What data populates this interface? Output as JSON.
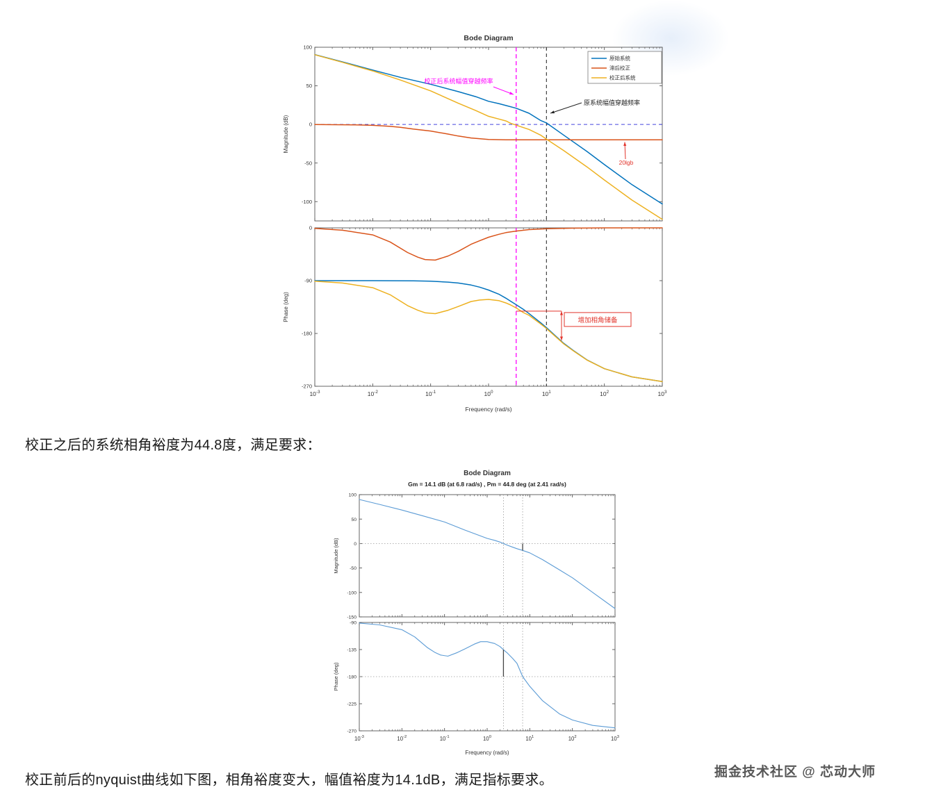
{
  "page": {
    "paragraph1": "校正之后的系统相角裕度为44.8度，满足要求：",
    "paragraph2": "校正前后的nyquist曲线如下图，相角裕度变大，幅值裕度为14.1dB，满足指标要求。",
    "watermark": "掘金技术社区 @ 芯动大师"
  },
  "colors": {
    "blue": "#0072BD",
    "orange": "#D95319",
    "yellow": "#EDB120",
    "lightblue": "#5B9BD5",
    "magenta": "#FF00FF",
    "red": "#E2342B",
    "zero_line": "#4444DD",
    "axis": "#555555"
  },
  "chart_data": [
    {
      "type": "line",
      "title": "Bode Diagram",
      "xlabel": "Frequency  (rad/s)",
      "xscale": "log",
      "xlim": [
        0.001,
        1000
      ],
      "legend": [
        "原始系统",
        "滞后校正",
        "校正后系统"
      ],
      "legend_position": "top-right",
      "subplots": [
        {
          "ylabel": "Magnitude (dB)",
          "ylim": [
            -125,
            100
          ],
          "yticks": [
            100,
            50,
            0,
            -50,
            -100
          ],
          "zero_db_refline": 0,
          "series": [
            {
              "name": "原始系统",
              "color": "blue",
              "x": [
                0.001,
                0.003,
                0.01,
                0.03,
                0.1,
                0.3,
                0.6,
                1,
                1.5,
                2,
                3,
                5,
                8,
                10,
                20,
                50,
                100,
                300,
                1000
              ],
              "y": [
                90.5,
                81,
                70.5,
                61,
                52,
                42.5,
                36,
                30,
                27,
                24.5,
                21,
                14.5,
                5,
                2,
                -14,
                -35,
                -52,
                -78,
                -103
              ]
            },
            {
              "name": "滞后校正",
              "color": "orange",
              "x": [
                0.001,
                0.005,
                0.01,
                0.02,
                0.03,
                0.05,
                0.1,
                0.2,
                0.3,
                0.5,
                1,
                2,
                3,
                5,
                10,
                100,
                1000
              ],
              "y": [
                -0.2,
                -0.6,
                -1.2,
                -2.5,
                -3.8,
                -6,
                -8.5,
                -12.5,
                -15,
                -17.5,
                -19.5,
                -20,
                -20,
                -20,
                -20,
                -20,
                -20
              ]
            },
            {
              "name": "校正后系统",
              "color": "yellow",
              "x": [
                0.001,
                0.003,
                0.01,
                0.03,
                0.1,
                0.3,
                0.6,
                1,
                1.5,
                2,
                2.41,
                3,
                5,
                8,
                10,
                20,
                50,
                100,
                300,
                1000
              ],
              "y": [
                90.3,
                80.5,
                69.3,
                57.5,
                43.5,
                27.5,
                18,
                10.5,
                7,
                4.5,
                1.5,
                -1,
                -6.5,
                -14,
                -19,
                -34,
                -55,
                -72,
                -98,
                -123
              ]
            }
          ]
        },
        {
          "ylabel": "Phase (deg)",
          "ylim": [
            -270,
            0
          ],
          "yticks": [
            0,
            -90,
            -180,
            -270
          ],
          "series": [
            {
              "name": "滞后校正",
              "color": "orange",
              "x": [
                0.001,
                0.003,
                0.01,
                0.02,
                0.04,
                0.06,
                0.08,
                0.12,
                0.2,
                0.3,
                0.5,
                0.7,
                1,
                1.5,
                2,
                3,
                5,
                10,
                30,
                100,
                1000
              ],
              "y": [
                -1,
                -4,
                -12,
                -24,
                -42,
                -50,
                -54,
                -55,
                -48,
                -40,
                -28,
                -22,
                -16,
                -11,
                -8,
                -5.5,
                -3,
                -1.5,
                -0.5,
                0,
                0
              ]
            },
            {
              "name": "原始系统",
              "color": "blue",
              "x": [
                0.001,
                0.01,
                0.05,
                0.1,
                0.2,
                0.3,
                0.5,
                0.7,
                1,
                1.5,
                2,
                2.41,
                3,
                4,
                5,
                8,
                10,
                15,
                20,
                30,
                50,
                100,
                300,
                1000
              ],
              "y": [
                -90,
                -90,
                -90.3,
                -91,
                -92.5,
                -94,
                -97.5,
                -101,
                -106,
                -113,
                -120,
                -125,
                -131,
                -139,
                -146,
                -162,
                -170,
                -186,
                -197,
                -210,
                -225,
                -240,
                -254,
                -262
              ]
            },
            {
              "name": "校正后系统",
              "color": "yellow",
              "x": [
                0.001,
                0.003,
                0.01,
                0.02,
                0.04,
                0.06,
                0.08,
                0.12,
                0.2,
                0.3,
                0.5,
                0.7,
                1,
                1.5,
                2,
                2.41,
                3,
                4,
                5,
                8,
                10,
                15,
                20,
                30,
                50,
                100,
                300,
                1000
              ],
              "y": [
                -91,
                -94,
                -102,
                -114,
                -132.5,
                -140.5,
                -144.7,
                -146.2,
                -140.5,
                -134,
                -125.5,
                -123,
                -122,
                -124,
                -128,
                -131.5,
                -136.5,
                -144.5,
                -149,
                -164,
                -171.5,
                -187,
                -198,
                -210.5,
                -225.3,
                -240,
                -254,
                -262
              ]
            }
          ]
        }
      ],
      "annotations": {
        "compensated_crossover_x": 3,
        "original_crossover_x": 10,
        "compensated_crossover_label": "校正后系统幅值穿越频率",
        "original_crossover_label": "原系统幅值穿越频率",
        "gain_annotation": "20lgb",
        "phase_margin_annotation": "增加相角储备"
      }
    },
    {
      "type": "line",
      "title": "Bode Diagram",
      "subtitle": "Gm = 14.1 dB (at 6.8 rad/s) ,  Pm = 44.8 deg (at 2.41 rad/s)",
      "xlabel": "Frequency  (rad/s)",
      "xscale": "log",
      "xlim": [
        0.001,
        1000
      ],
      "gain_margin_db": 14.1,
      "gain_margin_freq": 6.8,
      "phase_margin_deg": 44.8,
      "phase_margin_freq": 2.41,
      "dotted_vlines": [
        2.41,
        6.8
      ],
      "subplots": [
        {
          "ylabel": "Magnitude (dB)",
          "ylim": [
            -150,
            100
          ],
          "yticks": [
            100,
            50,
            0,
            -50,
            -100,
            -150
          ],
          "dotted_hline": 0,
          "marker": {
            "x": 6.8,
            "y_from": 0,
            "y_to": -14.1
          },
          "series": [
            {
              "name": "校正后系统",
              "color": "lightblue",
              "x": [
                0.001,
                0.003,
                0.01,
                0.03,
                0.1,
                0.3,
                1,
                1.5,
                2,
                2.41,
                3,
                4,
                5,
                6.8,
                10,
                20,
                50,
                100,
                300,
                1000
              ],
              "y": [
                90,
                80,
                68.5,
                57,
                44,
                27.5,
                10.5,
                6.5,
                3,
                0,
                -3.5,
                -7.5,
                -10.5,
                -14.1,
                -19,
                -33,
                -54,
                -70,
                -100,
                -133
              ]
            }
          ]
        },
        {
          "ylabel": "Phase (deg)",
          "ylim": [
            -270,
            -90
          ],
          "yticks": [
            -90,
            -135,
            -180,
            -225,
            -270
          ],
          "dotted_hline": -180,
          "marker": {
            "x": 2.41,
            "y_from": -135.2,
            "y_to": -180
          },
          "series": [
            {
              "name": "校正后系统",
              "color": "lightblue",
              "x": [
                0.001,
                0.003,
                0.01,
                0.02,
                0.04,
                0.06,
                0.08,
                0.12,
                0.2,
                0.3,
                0.5,
                0.7,
                1,
                1.5,
                2,
                2.41,
                3,
                4,
                5,
                6.8,
                10,
                20,
                50,
                100,
                300,
                1000
              ],
              "y": [
                -91,
                -94,
                -102,
                -114,
                -132,
                -140,
                -144,
                -146,
                -140,
                -134,
                -126,
                -122,
                -122,
                -125,
                -130,
                -135.2,
                -141,
                -150,
                -158,
                -180,
                -196,
                -220,
                -242,
                -252,
                -261,
                -265
              ]
            }
          ]
        }
      ]
    }
  ]
}
